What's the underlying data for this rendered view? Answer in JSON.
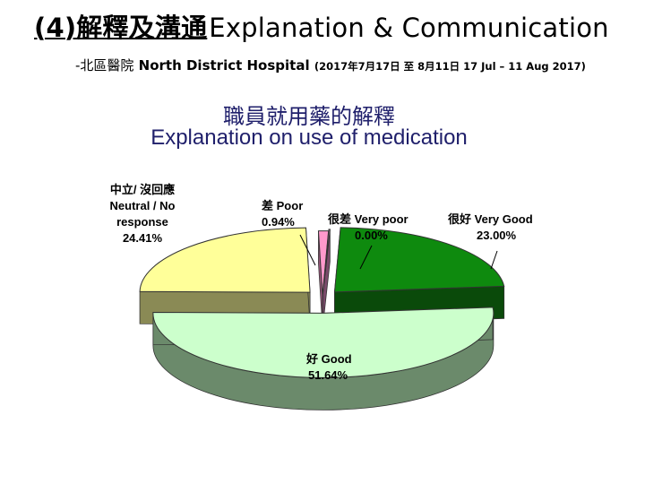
{
  "header": {
    "title_zh": "(4)解釋及溝通",
    "title_en": "Explanation & Communication",
    "subtitle_zh": "-北區醫院",
    "subtitle_en": "North District Hospital",
    "subtitle_dates": "(2017年7月17日 至 8月11日 17 Jul – 11 Aug 2017)"
  },
  "chart_data": {
    "type": "pie",
    "title": "職員就用藥的解釋",
    "subtitle": "Explanation on use of medication",
    "slices": [
      {
        "name": "很好 Very Good",
        "label_zh": "很好",
        "label_en": "Very Good",
        "percent_label": "23.00%",
        "value": 23.0,
        "color": "#0e8a0e",
        "side_color": "#0a4a0a"
      },
      {
        "name": "好 Good",
        "label_zh": "好",
        "label_en": "Good",
        "percent_label": "51.64%",
        "value": 51.64,
        "color": "#ccffcc",
        "side_color": "#6b8a6b"
      },
      {
        "name": "中立/沒回應 Neutral / No response",
        "label_zh": "中立/沒回應",
        "label_en": "Neutral / No response",
        "percent_label": "24.41%",
        "value": 24.41,
        "color": "#ffff99",
        "side_color": "#8a8a55"
      },
      {
        "name": "差 Poor",
        "label_zh": "差",
        "label_en": "Poor",
        "percent_label": "0.94%",
        "value": 0.94,
        "color": "#ff99cc",
        "side_color": "#a05a80"
      },
      {
        "name": "很差 Very poor",
        "label_zh": "很差",
        "label_en": "Very poor",
        "percent_label": "0.00%",
        "value": 0.0,
        "color": "#d9a0c8",
        "side_color": "#7a4a6a"
      }
    ],
    "legend": "none",
    "style": "3d-exploded"
  }
}
